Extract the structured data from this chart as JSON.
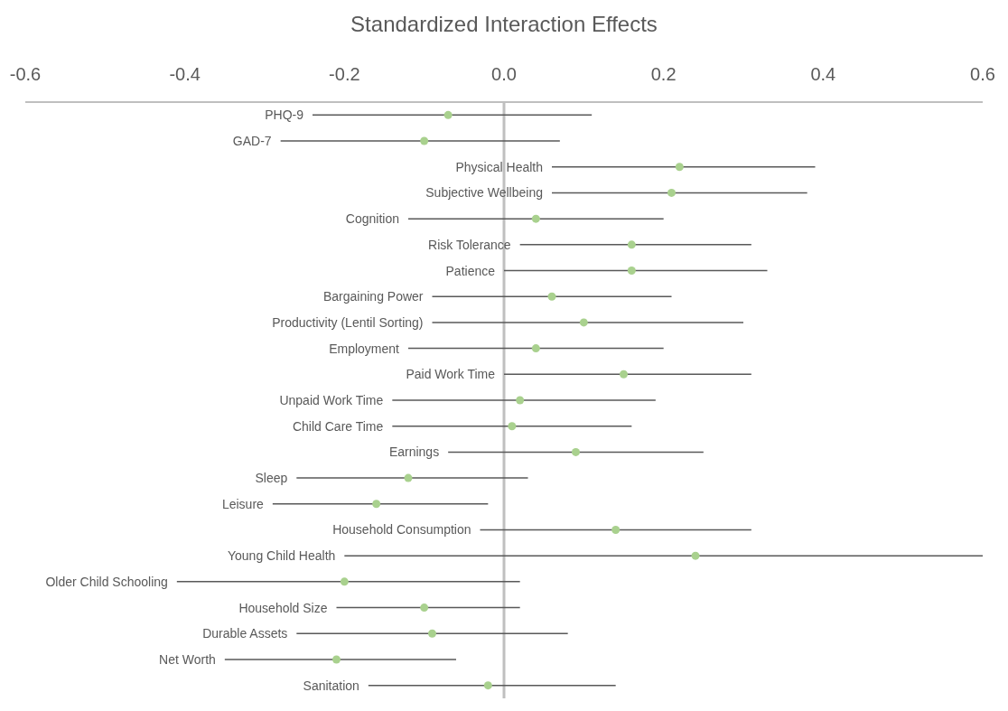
{
  "chart_data": {
    "type": "scatter",
    "orientation": "horizontal",
    "xlabel": "Standardized Interaction Effects",
    "marker": "circle",
    "color": "#a9d18e",
    "categories": [
      "PHQ-9",
      "GAD-7",
      "Physical Health",
      "Subjective Wellbeing",
      "Cognition",
      "Risk Tolerance",
      "Patience",
      "Bargaining Power",
      "Productivity (Lentil Sorting)",
      "Employment",
      "Paid Work Time",
      "Unpaid Work Time",
      "Child Care Time",
      "Earnings",
      "Sleep",
      "Leisure",
      "Household Consumption",
      "Young Child Health",
      "Older Child Schooling",
      "Household Size",
      "Durable Assets",
      "Net Worth",
      "Sanitation"
    ],
    "values": [
      -0.07,
      -0.1,
      0.22,
      0.21,
      0.04,
      0.16,
      0.16,
      0.06,
      0.1,
      0.04,
      0.15,
      0.02,
      0.01,
      0.09,
      -0.12,
      -0.16,
      0.14,
      0.24,
      -0.2,
      -0.1,
      -0.09,
      -0.21,
      -0.02
    ],
    "errors": [
      [
        -0.24,
        0.11
      ],
      [
        -0.28,
        0.07
      ],
      [
        0.06,
        0.39
      ],
      [
        0.06,
        0.38
      ],
      [
        -0.12,
        0.2
      ],
      [
        0.02,
        0.31
      ],
      [
        0.0,
        0.33
      ],
      [
        -0.09,
        0.21
      ],
      [
        -0.09,
        0.3
      ],
      [
        -0.12,
        0.2
      ],
      [
        0.0,
        0.31
      ],
      [
        -0.14,
        0.19
      ],
      [
        -0.14,
        0.16
      ],
      [
        -0.07,
        0.25
      ],
      [
        -0.26,
        0.03
      ],
      [
        -0.29,
        -0.02
      ],
      [
        -0.03,
        0.31
      ],
      [
        -0.2,
        0.6
      ],
      [
        -0.41,
        0.02
      ],
      [
        -0.21,
        0.02
      ],
      [
        -0.26,
        0.08
      ],
      [
        -0.35,
        -0.06
      ],
      [
        -0.17,
        0.14
      ]
    ],
    "xlim": [
      -0.6,
      0.6
    ],
    "xticks": [
      -0.6,
      -0.4,
      -0.2,
      {
        "value": 0,
        "label": "0.0"
      },
      0.2,
      0.4,
      0.6
    ],
    "ref_lines": [
      {
        "axis": "x",
        "value": 0,
        "color": "#bfbfbf"
      }
    ]
  }
}
